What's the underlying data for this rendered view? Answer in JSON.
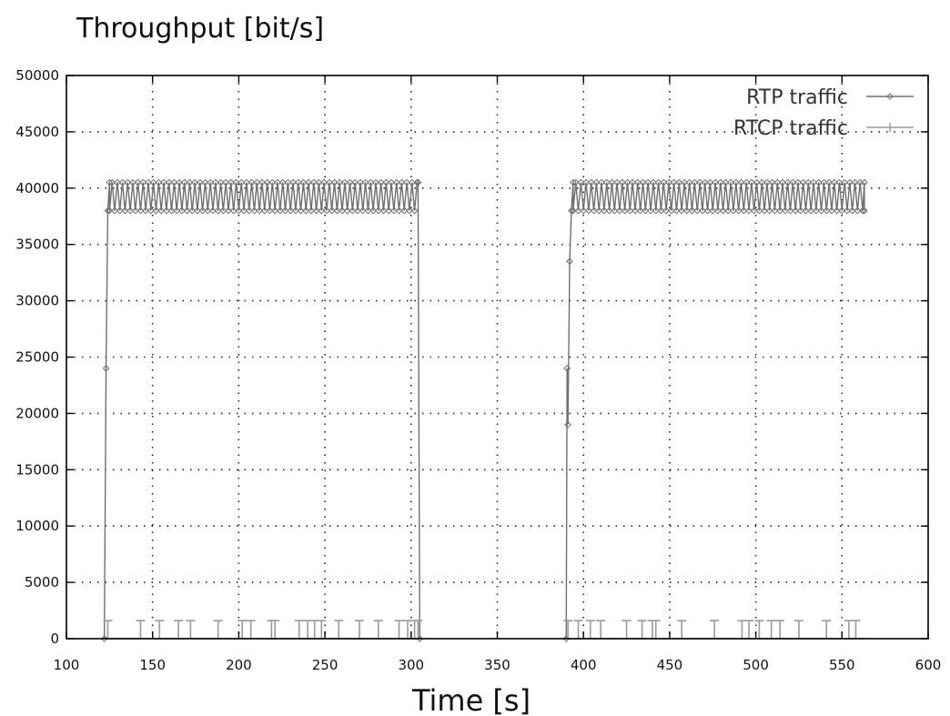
{
  "chart_data": {
    "type": "line",
    "title": "Throughput [bit/s]",
    "xlabel": "Time [s]",
    "ylabel": "",
    "xlim": [
      100,
      600
    ],
    "ylim": [
      0,
      50000
    ],
    "xticks": [
      100,
      150,
      200,
      250,
      300,
      350,
      400,
      450,
      500,
      550,
      600
    ],
    "yticks": [
      0,
      5000,
      10000,
      15000,
      20000,
      25000,
      30000,
      35000,
      40000,
      45000,
      50000
    ],
    "grid": true,
    "legend_position": "top-right",
    "colors": {
      "rtp": "#707070",
      "rtcp": "#9a9a9a",
      "grid": "#222222",
      "frame": "#000000"
    },
    "series": [
      {
        "name": "RTP traffic",
        "marker": "diamond",
        "segments": [
          {
            "start_points": [
              [
                122,
                0
              ],
              [
                123,
                24000
              ],
              [
                124,
                38000
              ],
              [
                125,
                40500
              ]
            ],
            "oscillation": {
              "x_start": 125,
              "x_end": 304,
              "step": 1.5,
              "high": 40500,
              "low": 38000
            },
            "end_points": [
              [
                304,
                40500
              ],
              [
                305,
                0
              ]
            ]
          },
          {
            "start_points": [
              [
                390,
                0
              ],
              [
                390.5,
                24000
              ],
              [
                391,
                19000
              ],
              [
                392,
                33500
              ],
              [
                393,
                38000
              ],
              [
                394,
                40500
              ]
            ],
            "oscillation": {
              "x_start": 394,
              "x_end": 563,
              "step": 1.5,
              "high": 40500,
              "low": 38000
            },
            "end_points": [
              [
                563,
                40500
              ],
              [
                563,
                38000
              ]
            ]
          }
        ]
      },
      {
        "name": "RTCP traffic",
        "marker": "plus",
        "baseline": 0,
        "spike_value": 1600,
        "spikes_x": [
          124,
          143,
          154,
          165,
          172,
          188,
          202,
          207,
          219,
          221,
          235,
          240,
          244,
          248,
          258,
          270,
          281,
          293,
          298,
          302,
          304,
          391,
          397,
          404,
          410,
          425,
          434,
          440,
          442,
          457,
          476,
          492,
          496,
          502,
          509,
          514,
          525,
          541,
          554,
          558
        ]
      }
    ]
  }
}
